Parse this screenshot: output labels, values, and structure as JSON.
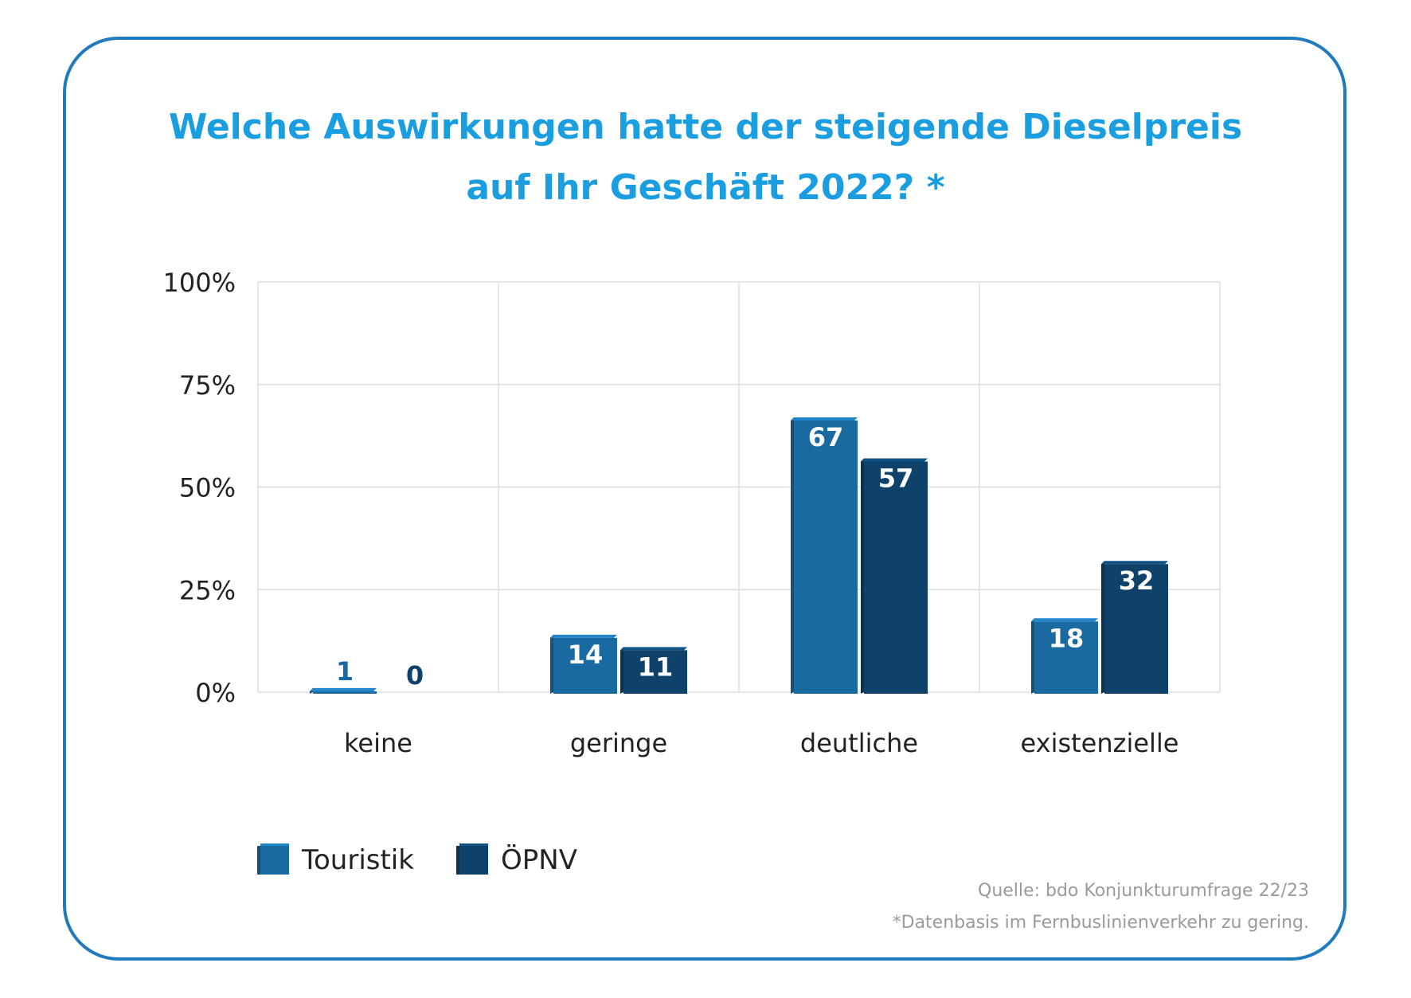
{
  "title_line1": "Welche Auswirkungen hatte der steigende Dieselpreis",
  "title_line2": "auf Ihr Geschäft 2022? *",
  "source": "Quelle: bdo Konjunkturumfrage 22/23",
  "footnote": "*Datenbasis im Fernbuslinienverkehr zu gering.",
  "colors": {
    "frame": "#1f7bbd",
    "title": "#1a9ee0",
    "touristik": "#1a6aa2",
    "oepnv": "#0e426b",
    "grid": "#dddddd"
  },
  "chart_data": {
    "type": "bar",
    "categories": [
      "keine",
      "geringe",
      "deutliche",
      "existenzielle"
    ],
    "series": [
      {
        "name": "Touristik",
        "values": [
          1,
          14,
          67,
          18
        ],
        "color": "#1a6aa2"
      },
      {
        "name": "ÖPNV",
        "values": [
          0,
          11,
          57,
          32
        ],
        "color": "#0e426b"
      }
    ],
    "yticks": [
      "0%",
      "25%",
      "50%",
      "75%",
      "100%"
    ],
    "ylim": [
      0,
      100
    ],
    "grid": true,
    "legend_position": "bottom-left"
  }
}
